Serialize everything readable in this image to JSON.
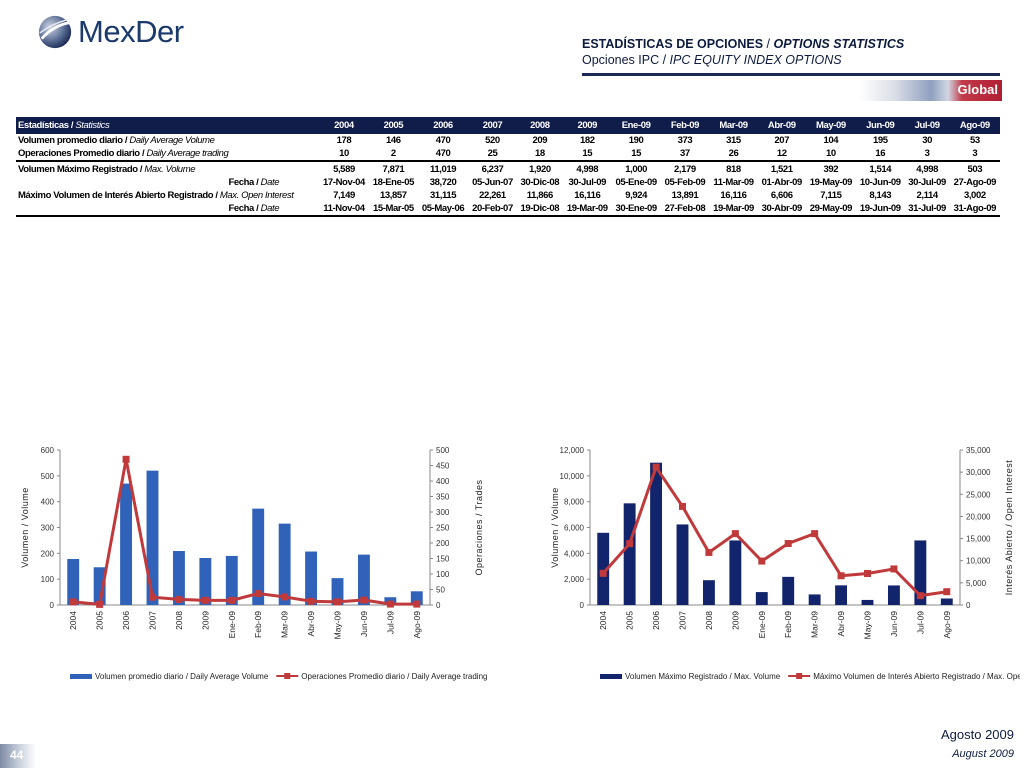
{
  "brand": "MexDer",
  "header": {
    "title_es": "ESTADÍSTICAS DE OPCIONES",
    "title_sep": " / ",
    "title_en": "OPTIONS STATISTICS",
    "subtitle_es": "Opciones IPC",
    "subtitle_sep": " / ",
    "subtitle_en": "IPC EQUITY INDEX OPTIONS",
    "badge": "Global"
  },
  "table": {
    "header_es": "Estadísticas",
    "header_en": "Statistics",
    "columns": [
      "2004",
      "2005",
      "2006",
      "2007",
      "2008",
      "2009",
      "Ene-09",
      "Feb-09",
      "Mar-09",
      "Abr-09",
      "May-09",
      "Jun-09",
      "Jul-09",
      "Ago-09"
    ],
    "rows": [
      {
        "es": "Volumen promedio diario",
        "en": "Daily Average Volume",
        "values": [
          "178",
          "146",
          "470",
          "520",
          "209",
          "182",
          "190",
          "373",
          "315",
          "207",
          "104",
          "195",
          "30",
          "53"
        ]
      },
      {
        "es": "Operaciones Promedio diario",
        "en": "Daily Average trading",
        "values": [
          "10",
          "2",
          "470",
          "25",
          "18",
          "15",
          "15",
          "37",
          "26",
          "12",
          "10",
          "16",
          "3",
          "3"
        ]
      },
      {
        "es": "Volumen Máximo Registrado",
        "en": "Max. Volume",
        "values": [
          "5,589",
          "7,871",
          "11,019",
          "6,237",
          "1,920",
          "4,998",
          "1,000",
          "2,179",
          "818",
          "1,521",
          "392",
          "1,514",
          "4,998",
          "503"
        ]
      },
      {
        "es": "Fecha",
        "en": "Date",
        "values": [
          "17-Nov-04",
          "18-Ene-05",
          "38,720",
          "05-Jun-07",
          "30-Dic-08",
          "30-Jul-09",
          "05-Ene-09",
          "05-Feb-09",
          "11-Mar-09",
          "01-Abr-09",
          "19-May-09",
          "10-Jun-09",
          "30-Jul-09",
          "27-Ago-09"
        ]
      },
      {
        "es": "Máximo Volumen de Interés Abierto Registrado",
        "en": "Max. Open Interest",
        "values": [
          "7,149",
          "13,857",
          "31,115",
          "22,261",
          "11,866",
          "16,116",
          "9,924",
          "13,891",
          "16,116",
          "6,606",
          "7,115",
          "8,143",
          "2,114",
          "3,002"
        ]
      },
      {
        "es": "Fecha",
        "en": "Date",
        "values": [
          "11-Nov-04",
          "15-Mar-05",
          "05-May-06",
          "20-Feb-07",
          "19-Dic-08",
          "19-Mar-09",
          "30-Ene-09",
          "27-Feb-08",
          "19-Mar-09",
          "30-Abr-09",
          "29-May-09",
          "19-Jun-09",
          "31-Jul-09",
          "31-Ago-09"
        ]
      }
    ]
  },
  "chart_data": [
    {
      "type": "bar",
      "categories": [
        "2004",
        "2005",
        "2006",
        "2007",
        "2008",
        "2009",
        "Ene-09",
        "Feb-09",
        "Mar-09",
        "Abr-09",
        "May-09",
        "Jun-09",
        "Jul-09",
        "Ago-09"
      ],
      "series": [
        {
          "name": "Volumen promedio diario / Daily Average Volume",
          "kind": "bar",
          "axis": "left",
          "values": [
            178,
            146,
            470,
            520,
            209,
            182,
            190,
            373,
            315,
            207,
            104,
            195,
            30,
            53
          ]
        },
        {
          "name": "Operaciones Promedio diario / Daily Average trading",
          "kind": "line",
          "axis": "right",
          "values": [
            10,
            2,
            470,
            25,
            18,
            15,
            15,
            37,
            26,
            12,
            10,
            16,
            3,
            3
          ]
        }
      ],
      "ylabel": "Volumen / Volume",
      "ylabel2": "Operaciones / Trades",
      "ylim": [
        0,
        600
      ],
      "yticks": [
        "0",
        "100",
        "200",
        "300",
        "400",
        "500",
        "600"
      ],
      "ylim2": [
        0,
        500
      ],
      "yticks2": [
        "0",
        "50",
        "100",
        "150",
        "200",
        "250",
        "300",
        "350",
        "400",
        "450",
        "500"
      ],
      "grid": false,
      "legend": "bottom",
      "bar_color": "#2f62b8",
      "line_color": "#c0393b"
    },
    {
      "type": "bar",
      "categories": [
        "2004",
        "2005",
        "2006",
        "2007",
        "2008",
        "2009",
        "Ene-09",
        "Feb-09",
        "Mar-09",
        "Abr-09",
        "May-09",
        "Jun-09",
        "Jul-09",
        "Ago-09"
      ],
      "series": [
        {
          "name": "Volumen Máximo Registrado / Max. Volume",
          "kind": "bar",
          "axis": "left",
          "values": [
            5589,
            7871,
            11019,
            6237,
            1920,
            4998,
            1000,
            2179,
            818,
            1521,
            392,
            1514,
            4998,
            503
          ]
        },
        {
          "name": "Máximo Volumen de Interés Abierto Registrado / Max. Open Interest",
          "kind": "line",
          "axis": "right",
          "values": [
            7149,
            13857,
            31115,
            22261,
            11866,
            16116,
            9924,
            13891,
            16116,
            6606,
            7115,
            8143,
            2114,
            3002
          ]
        }
      ],
      "ylabel": "Volumen / Volume",
      "ylabel2": "Interés Abierto / Open Interest",
      "ylim": [
        0,
        12000
      ],
      "yticks": [
        "0",
        "2,000",
        "4,000",
        "6,000",
        "8,000",
        "10,000",
        "12,000"
      ],
      "ylim2": [
        0,
        35000
      ],
      "yticks2": [
        "0",
        "5,000",
        "10,000",
        "15,000",
        "20,000",
        "25,000",
        "30,000",
        "35,000"
      ],
      "grid": false,
      "legend": "bottom",
      "bar_color": "#12246b",
      "line_color": "#c0393b"
    }
  ],
  "footer": {
    "date_es": "Agosto 2009",
    "date_en": "August 2009",
    "page": "44"
  }
}
